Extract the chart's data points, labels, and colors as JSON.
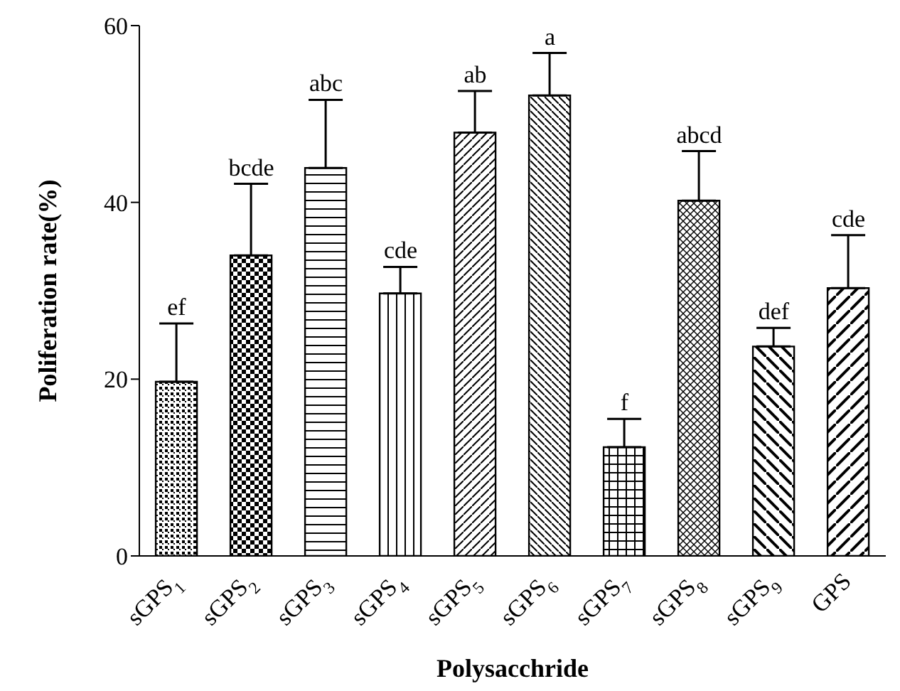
{
  "chart_data": {
    "type": "bar",
    "xlabel": "Polysacchride",
    "ylabel": "Poliferation rate(%)",
    "categories": [
      "sGPS$_{1}$",
      "sGPS$_{2}$",
      "sGPS$_{3}$",
      "sGPS$_{4}$",
      "sGPS$_{5}$",
      "sGPS$_{6}$",
      "sGPS$_{7}$",
      "sGPS$_{8}$",
      "sGPS$_{9}$",
      "GPS"
    ],
    "values": [
      19.7,
      34.0,
      43.9,
      29.7,
      47.9,
      52.1,
      12.3,
      40.2,
      23.7,
      30.3
    ],
    "errors": [
      [
        19.7,
        26.3
      ],
      [
        34.0,
        42.1
      ],
      [
        43.9,
        51.6
      ],
      [
        29.7,
        32.7
      ],
      [
        47.9,
        52.6
      ],
      [
        52.1,
        56.9
      ],
      [
        12.3,
        15.5
      ],
      [
        40.2,
        45.8
      ],
      [
        23.7,
        25.8
      ],
      [
        30.3,
        36.3
      ]
    ],
    "colors": [
      "#000000",
      "#000000",
      "#000000",
      "#000000",
      "#000000",
      "#000000",
      "#000000",
      "#000000",
      "#000000",
      "#000000"
    ],
    "ylim": [
      0,
      60
    ],
    "yticks": [
      0,
      20,
      40,
      60
    ],
    "annotations": [
      "ef",
      "bcde",
      "abc",
      "cde",
      "ab",
      "a",
      "f",
      "abcd",
      "def",
      "cde"
    ]
  }
}
